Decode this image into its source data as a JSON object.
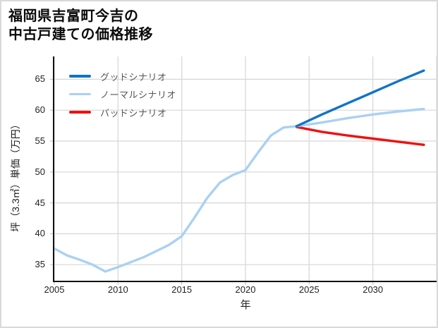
{
  "page": {
    "background": "#ffffff",
    "border_color": "#d9d9d9",
    "grid_color": "#d6d6d6",
    "spine_color": "#111111",
    "tick_color": "#c9c9c9"
  },
  "title": {
    "line1": "福岡県吉富町今吉の",
    "line2": "中古戸建ての価格推移"
  },
  "legend": {
    "items": [
      {
        "label": "グッドシナリオ",
        "color": "#1173c8"
      },
      {
        "label": "ノーマルシナリオ",
        "color": "#a9d1f3"
      },
      {
        "label": "バッドシナリオ",
        "color": "#ee1111"
      }
    ]
  },
  "chart_data": {
    "type": "line",
    "title": "福岡県吉富町今吉の中古戸建ての価格推移",
    "xlabel": "年",
    "ylabel": "坪（3.3㎡）単価（万円）",
    "x_ticks": [
      2005,
      2010,
      2015,
      2020,
      2025,
      2030
    ],
    "y_ticks": [
      35,
      40,
      45,
      50,
      55,
      60,
      65
    ],
    "xlim": [
      2005,
      2035
    ],
    "ylim": [
      32.4,
      68.7
    ],
    "grid": true,
    "legend_position": "upper-left",
    "series": [
      {
        "name": "グッドシナリオ",
        "color": "#1173c8",
        "width": 3.4,
        "x": [
          2024,
          2026,
          2028,
          2030,
          2032,
          2034
        ],
        "y": [
          57.4,
          59.3,
          61.1,
          62.9,
          64.7,
          66.4
        ]
      },
      {
        "name": "ノーマルシナリオ",
        "color": "#a9d1f3",
        "width": 3.4,
        "x": [
          2005,
          2006,
          2007,
          2008,
          2009,
          2010,
          2011,
          2012,
          2013,
          2014,
          2015,
          2016,
          2017,
          2018,
          2019,
          2020,
          2021,
          2022,
          2023,
          2024,
          2026,
          2028,
          2030,
          2032,
          2034
        ],
        "y": [
          37.6,
          36.5,
          35.8,
          35.0,
          33.9,
          34.6,
          35.4,
          36.2,
          37.2,
          38.2,
          39.6,
          42.6,
          45.8,
          48.3,
          49.5,
          50.3,
          53.2,
          55.9,
          57.2,
          57.4,
          58.0,
          58.7,
          59.3,
          59.8,
          60.2
        ]
      },
      {
        "name": "バッドシナリオ",
        "color": "#ee1111",
        "width": 3.4,
        "x": [
          2024,
          2026,
          2028,
          2030,
          2032,
          2034
        ],
        "y": [
          57.3,
          56.5,
          55.9,
          55.4,
          54.9,
          54.4
        ]
      }
    ]
  }
}
